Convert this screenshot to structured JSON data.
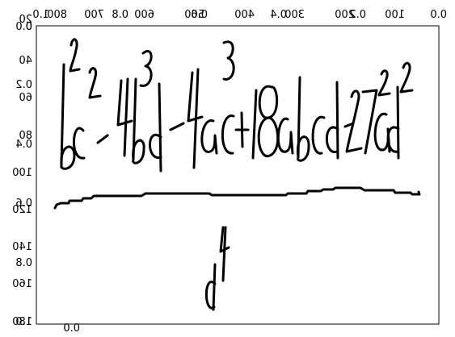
{
  "canvas": {
    "title": "",
    "flipped": "horizontal",
    "frame": "true"
  },
  "top_axis": {
    "upper_ticks": [
      "0.0",
      "0.2",
      "0.4",
      "0.6",
      "0.8",
      "1.0"
    ],
    "lower_ticks": [
      "100",
      "200",
      "300",
      "400",
      "500",
      "600",
      "700",
      "800"
    ]
  },
  "left_axis": {
    "upper_ticks": [
      "0.0",
      "0.2",
      "0.4",
      "0.6",
      "0.8",
      "1.0"
    ],
    "lower_ticks": [
      "0",
      "20",
      "40",
      "60",
      "80",
      "100",
      "120",
      "140",
      "160",
      "180"
    ]
  },
  "bottom_axis": {
    "ticks": [
      "0.0"
    ]
  },
  "content": {
    "numerator_expression": "b^2c^2-4b^3d-4ac^3+18abcd-27a^2d^2",
    "denominator_expression": "d^4"
  }
}
